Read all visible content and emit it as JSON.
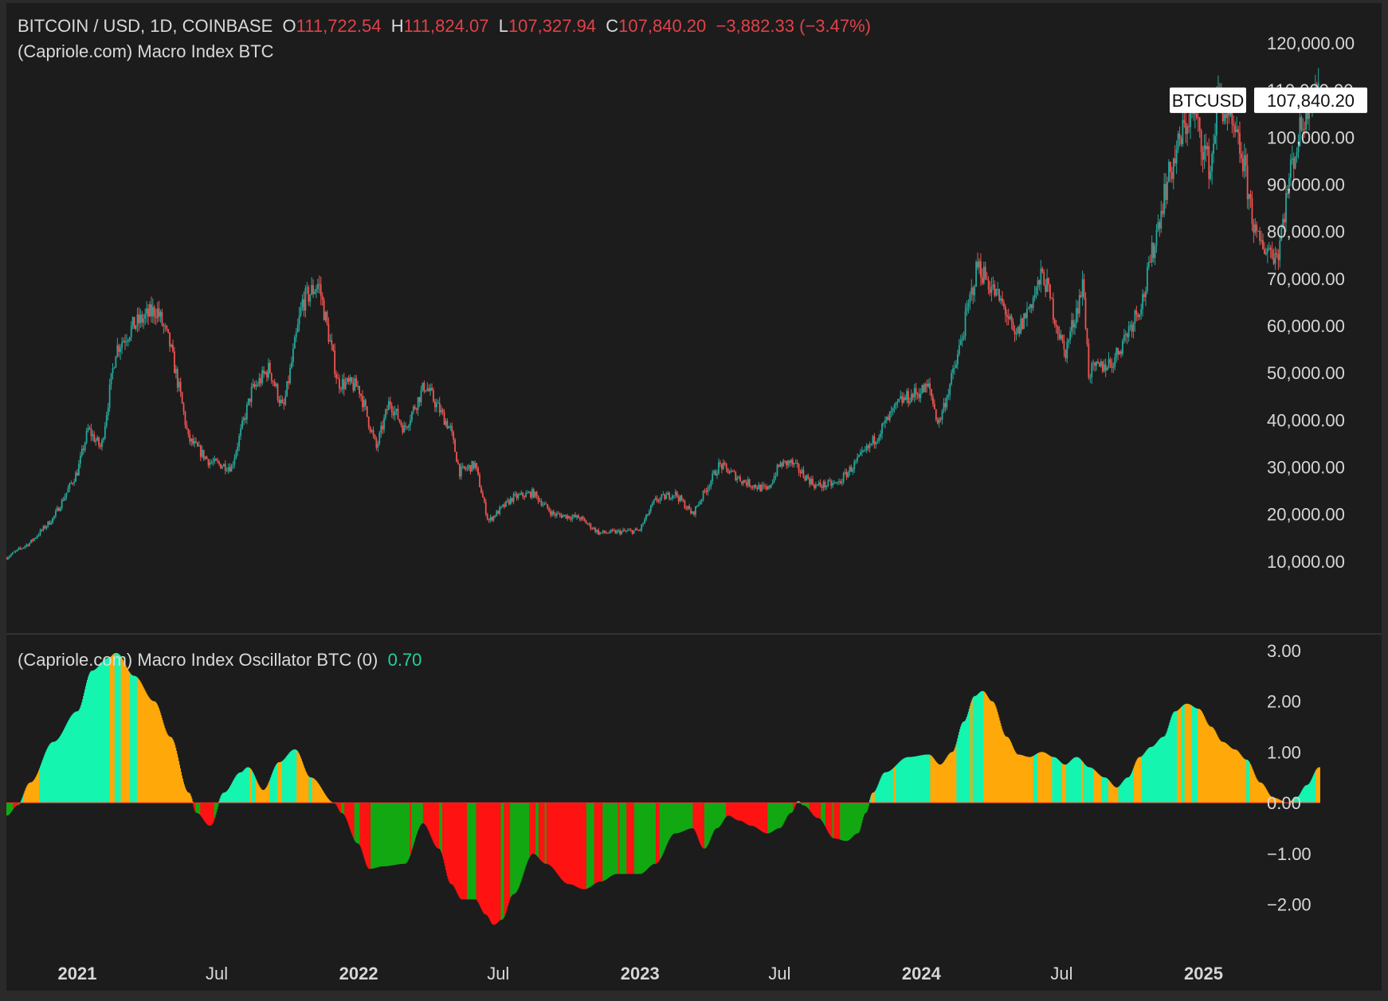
{
  "header": {
    "symbol": "BITCOIN / USD, 1D, COINBASE",
    "o_label": "O",
    "o_value": "111,722.54",
    "h_label": "H",
    "h_value": "111,824.07",
    "l_label": "L",
    "l_value": "107,327.94",
    "c_label": "C",
    "c_value": "107,840.20",
    "change": "−3,882.33 (−3.47%)",
    "indicator": "(Capriole.com) Macro Index BTC"
  },
  "oscillator_header": {
    "title": "(Capriole.com) Macro Index Oscillator BTC (0)",
    "value": "0.70"
  },
  "price_tag": {
    "label": "BTCUSD",
    "value": "107,840.20"
  },
  "colors": {
    "background": "#1c1c1c",
    "up": "#26a69a",
    "down": "#ef5350",
    "osc_mint": "#14f5b0",
    "osc_orange": "#ffa80a",
    "osc_red": "#ff1212",
    "osc_green": "#13a813",
    "accent_red": "#e0424a",
    "accent_teal": "#1ed3a0"
  },
  "chart_data": [
    {
      "type": "line",
      "series": [
        {
          "values": [
            [
              "2020-10-01",
              10800
            ],
            [
              "2020-11-01",
              14000
            ],
            [
              "2020-12-01",
              19200
            ],
            [
              "2021-01-01",
              29000
            ],
            [
              "2021-01-15",
              38000
            ],
            [
              "2021-02-01",
              34000
            ],
            [
              "2021-02-20",
              55000
            ],
            [
              "2021-03-15",
              60000
            ],
            [
              "2021-04-14",
              63500
            ],
            [
              "2021-05-01",
              56000
            ],
            [
              "2021-05-15",
              45000
            ],
            [
              "2021-05-25",
              36000
            ],
            [
              "2021-06-22",
              31000
            ],
            [
              "2021-07-20",
              30000
            ],
            [
              "2021-08-15",
              46000
            ],
            [
              "2021-09-07",
              51000
            ],
            [
              "2021-09-25",
              42000
            ],
            [
              "2021-10-20",
              65000
            ],
            [
              "2021-11-10",
              69000
            ],
            [
              "2021-12-05",
              48000
            ],
            [
              "2022-01-01",
              47000
            ],
            [
              "2022-01-24",
              34000
            ],
            [
              "2022-02-10",
              44000
            ],
            [
              "2022-03-01",
              38000
            ],
            [
              "2022-03-28",
              47500
            ],
            [
              "2022-04-30",
              38000
            ],
            [
              "2022-05-12",
              29000
            ],
            [
              "2022-06-01",
              30500
            ],
            [
              "2022-06-18",
              18500
            ],
            [
              "2022-07-20",
              23500
            ],
            [
              "2022-08-15",
              24500
            ],
            [
              "2022-09-10",
              20000
            ],
            [
              "2022-10-15",
              19200
            ],
            [
              "2022-11-09",
              16000
            ],
            [
              "2022-12-31",
              16500
            ],
            [
              "2023-01-20",
              22800
            ],
            [
              "2023-02-15",
              24500
            ],
            [
              "2023-03-10",
              20000
            ],
            [
              "2023-04-14",
              30500
            ],
            [
              "2023-05-15",
              27000
            ],
            [
              "2023-06-15",
              25000
            ],
            [
              "2023-07-01",
              30500
            ],
            [
              "2023-07-15",
              31000
            ],
            [
              "2023-08-17",
              26000
            ],
            [
              "2023-09-15",
              26500
            ],
            [
              "2023-10-24",
              34000
            ],
            [
              "2023-12-05",
              44000
            ],
            [
              "2024-01-11",
              47000
            ],
            [
              "2024-01-23",
              39000
            ],
            [
              "2024-02-15",
              52000
            ],
            [
              "2024-03-14",
              73000
            ],
            [
              "2024-04-20",
              63000
            ],
            [
              "2024-05-01",
              57000
            ],
            [
              "2024-06-07",
              71000
            ],
            [
              "2024-07-05",
              54000
            ],
            [
              "2024-07-29",
              69000
            ],
            [
              "2024-08-05",
              50000
            ],
            [
              "2024-09-06",
              52500
            ],
            [
              "2024-10-15",
              66000
            ],
            [
              "2024-11-12",
              89000
            ],
            [
              "2024-12-05",
              101000
            ],
            [
              "2024-12-17",
              106000
            ],
            [
              "2025-01-10",
              93000
            ],
            [
              "2025-01-20",
              109000
            ],
            [
              "2025-02-20",
              96000
            ],
            [
              "2025-03-11",
              78000
            ],
            [
              "2025-04-07",
              75000
            ],
            [
              "2025-04-25",
              94000
            ],
            [
              "2025-05-22",
              111000
            ],
            [
              "2025-05-31",
              107840.2
            ]
          ]
        }
      ],
      "x_ticks": [
        "2021",
        "Jul",
        "2022",
        "Jul",
        "2023",
        "Jul",
        "2024",
        "Jul",
        "2025"
      ],
      "y_ticks": [
        "120,000.00",
        "110,000.00",
        "100,000.00",
        "90,000.00",
        "80,000.00",
        "70,000.00",
        "60,000.00",
        "50,000.00",
        "40,000.00",
        "30,000.00",
        "20,000.00",
        "10,000.00"
      ],
      "ylim": [
        0,
        121000
      ],
      "xlim": [
        "2020-10-01",
        "2025-08-20"
      ]
    },
    {
      "type": "area",
      "series": [
        {
          "values": [
            [
              "2020-10-01",
              -0.25
            ],
            [
              "2020-10-15",
              -0.05
            ],
            [
              "2020-11-01",
              0.4
            ],
            [
              "2020-12-01",
              1.2
            ],
            [
              "2021-01-01",
              1.8
            ],
            [
              "2021-01-20",
              2.6
            ],
            [
              "2021-02-10",
              2.85
            ],
            [
              "2021-02-20",
              2.95
            ],
            [
              "2021-03-15",
              2.5
            ],
            [
              "2021-04-10",
              2.0
            ],
            [
              "2021-05-01",
              1.3
            ],
            [
              "2021-05-25",
              0.2
            ],
            [
              "2021-06-05",
              -0.2
            ],
            [
              "2021-06-22",
              -0.45
            ],
            [
              "2021-07-10",
              0.2
            ],
            [
              "2021-08-01",
              0.6
            ],
            [
              "2021-08-10",
              0.7
            ],
            [
              "2021-08-30",
              0.25
            ],
            [
              "2021-09-20",
              0.8
            ],
            [
              "2021-10-10",
              1.05
            ],
            [
              "2021-10-30",
              0.5
            ],
            [
              "2021-11-30",
              0.0
            ],
            [
              "2021-12-10",
              -0.2
            ],
            [
              "2021-12-31",
              -0.8
            ],
            [
              "2022-01-15",
              -1.3
            ],
            [
              "2022-02-01",
              -1.25
            ],
            [
              "2022-03-01",
              -1.2
            ],
            [
              "2022-03-25",
              -0.4
            ],
            [
              "2022-04-15",
              -0.9
            ],
            [
              "2022-05-01",
              -1.6
            ],
            [
              "2022-05-15",
              -1.9
            ],
            [
              "2022-06-01",
              -1.9
            ],
            [
              "2022-06-15",
              -2.2
            ],
            [
              "2022-06-25",
              -2.4
            ],
            [
              "2022-07-05",
              -2.3
            ],
            [
              "2022-07-20",
              -1.8
            ],
            [
              "2022-08-15",
              -1.0
            ],
            [
              "2022-09-01",
              -1.2
            ],
            [
              "2022-10-01",
              -1.6
            ],
            [
              "2022-10-20",
              -1.7
            ],
            [
              "2022-11-10",
              -1.55
            ],
            [
              "2022-12-01",
              -1.4
            ],
            [
              "2022-12-31",
              -1.4
            ],
            [
              "2023-01-20",
              -1.2
            ],
            [
              "2023-02-15",
              -0.6
            ],
            [
              "2023-03-10",
              -0.5
            ],
            [
              "2023-03-25",
              -0.9
            ],
            [
              "2023-04-10",
              -0.5
            ],
            [
              "2023-04-25",
              -0.25
            ],
            [
              "2023-05-10",
              -0.35
            ],
            [
              "2023-05-25",
              -0.45
            ],
            [
              "2023-06-15",
              -0.6
            ],
            [
              "2023-06-30",
              -0.5
            ],
            [
              "2023-07-15",
              -0.2
            ],
            [
              "2023-07-25",
              0.03
            ],
            [
              "2023-08-01",
              -0.05
            ],
            [
              "2023-08-20",
              -0.3
            ],
            [
              "2023-09-10",
              -0.7
            ],
            [
              "2023-09-25",
              -0.75
            ],
            [
              "2023-10-10",
              -0.6
            ],
            [
              "2023-10-20",
              -0.2
            ],
            [
              "2023-10-30",
              0.2
            ],
            [
              "2023-11-15",
              0.6
            ],
            [
              "2023-12-15",
              0.9
            ],
            [
              "2024-01-10",
              0.95
            ],
            [
              "2024-01-25",
              0.75
            ],
            [
              "2024-02-10",
              1.0
            ],
            [
              "2024-02-25",
              1.6
            ],
            [
              "2024-03-10",
              2.1
            ],
            [
              "2024-03-20",
              2.2
            ],
            [
              "2024-04-01",
              2.0
            ],
            [
              "2024-04-20",
              1.3
            ],
            [
              "2024-05-05",
              0.95
            ],
            [
              "2024-05-20",
              0.9
            ],
            [
              "2024-06-05",
              1.0
            ],
            [
              "2024-06-20",
              0.9
            ],
            [
              "2024-07-05",
              0.75
            ],
            [
              "2024-07-20",
              0.9
            ],
            [
              "2024-08-05",
              0.7
            ],
            [
              "2024-08-25",
              0.5
            ],
            [
              "2024-09-10",
              0.3
            ],
            [
              "2024-09-25",
              0.5
            ],
            [
              "2024-10-10",
              0.9
            ],
            [
              "2024-10-25",
              1.1
            ],
            [
              "2024-11-10",
              1.3
            ],
            [
              "2024-11-25",
              1.8
            ],
            [
              "2024-12-10",
              1.95
            ],
            [
              "2024-12-25",
              1.85
            ],
            [
              "2025-01-10",
              1.5
            ],
            [
              "2025-01-25",
              1.2
            ],
            [
              "2025-02-10",
              1.05
            ],
            [
              "2025-02-25",
              0.85
            ],
            [
              "2025-03-15",
              0.4
            ],
            [
              "2025-04-01",
              0.1
            ],
            [
              "2025-04-20",
              0.0
            ],
            [
              "2025-05-01",
              0.1
            ],
            [
              "2025-05-15",
              0.35
            ],
            [
              "2025-05-31",
              0.7
            ]
          ]
        }
      ],
      "y_ticks": [
        "3.00",
        "2.00",
        "1.00",
        "0.00",
        "−1.00",
        "−2.00"
      ],
      "ylim": [
        -2.6,
        3.2
      ]
    }
  ]
}
